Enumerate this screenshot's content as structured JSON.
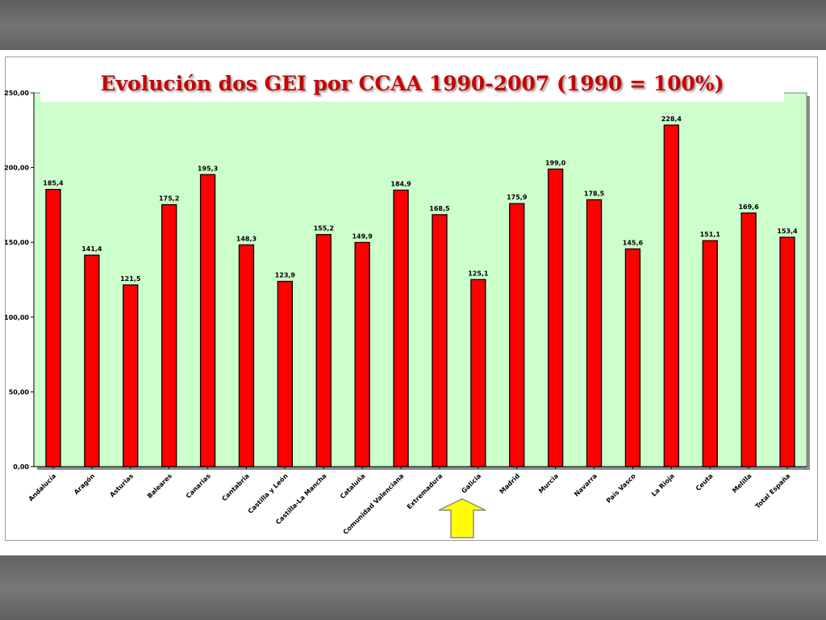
{
  "slide": {
    "title": "Evolución dos GEI por CCAA 1990-2007 (1990 = 100%)"
  },
  "colors": {
    "bar": "#ff0000",
    "plot_background": "#ccffcc",
    "title": "#cc0000",
    "arrow": "#ffff00"
  },
  "chart_data": {
    "type": "bar",
    "categories": [
      "Andalucía",
      "Aragón",
      "Asturias",
      "Baleares",
      "Canarias",
      "Cantabria",
      "Castilla y León",
      "Castilla-La Mancha",
      "Cataluña",
      "Comunidad Valenciana",
      "Extremadura",
      "Galicia",
      "Madrid",
      "Murcia",
      "Navarra",
      "País Vasco",
      "La Rioja",
      "Ceuta",
      "Melilla",
      "Total España"
    ],
    "values": [
      185.4,
      141.4,
      121.5,
      175.2,
      195.3,
      148.3,
      123.9,
      155.2,
      149.9,
      184.9,
      168.5,
      125.1,
      175.9,
      199.0,
      178.5,
      145.6,
      228.4,
      151.1,
      169.6,
      153.4
    ],
    "value_labels": [
      "185,4",
      "141,4",
      "121,5",
      "175,2",
      "195,3",
      "148,3",
      "123,9",
      "155,2",
      "149,9",
      "184,9",
      "168,5",
      "125,1",
      "175,9",
      "199,0",
      "178,5",
      "145,6",
      "228,4",
      "151,1",
      "169,6",
      "153,4"
    ],
    "y_ticks": [
      0,
      50,
      100,
      150,
      200,
      250
    ],
    "y_tick_labels": [
      "0,00",
      "50,00",
      "100,00",
      "150,00",
      "200,00",
      "250,00"
    ],
    "ylim": [
      0,
      250
    ],
    "grid": false,
    "highlight_category": "Galicia",
    "highlight_marker": "up-arrow"
  }
}
